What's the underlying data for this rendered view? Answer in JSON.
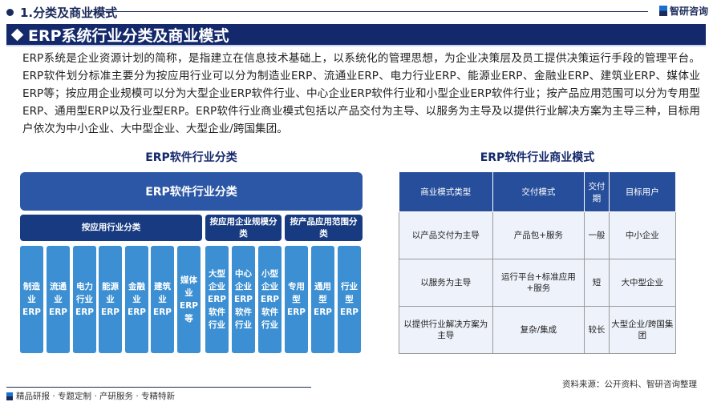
{
  "section": {
    "title": "1.分类及商业模式"
  },
  "brand": {
    "name": "智研咨询"
  },
  "title": "ERP系统行业分类及商业模式",
  "paragraph": "ERP系统是企业资源计划的简称，是指建立在信息技术基础上，以系统化的管理思想，为企业决策层及员工提供决策运行手段的管理平台。ERP软件划分标准主要分为按应用行业可以分为制造业ERP、流通业ERP、电力行业ERP、能源业ERP、金融业ERP、建筑业ERP、媒体业ERP等；按应用企业规模可以分为大型企业ERP软件行业、中心企业ERP软件行业和小型企业ERP软件行业；按产品应用范围可以分为专用型ERP、通用型ERP以及行业型ERP。ERP软件行业商业模式包括以产品交付为主导、以服务为主导及以提供行业解决方案为主导三种，目标用户依次为中小企业、大中型企业、大型企业/跨国集团。",
  "classification": {
    "heading": "ERP软件行业分类",
    "root": "ERP软件行业分类",
    "groups": [
      "按应用行业分类",
      "按应用企业规模分类",
      "按产品应用范围分类"
    ],
    "items": [
      "制造业ERP",
      "流通业ERP",
      "电力行业ERP",
      "能源业ERP",
      "金融业ERP",
      "建筑业ERP",
      "媒体业ERP等",
      "大型企业ERP软件行业",
      "中心企业ERP软件行业",
      "小型企业ERP软件行业",
      "专用型ERP",
      "通用型ERP",
      "行业型ERP"
    ]
  },
  "business": {
    "heading": "ERP软件行业商业模式",
    "headers": [
      "商业模式类型",
      "交付模式",
      "交付期",
      "目标用户"
    ],
    "rows": [
      [
        "以产品交付为主导",
        "产品包+服务",
        "一般",
        "中小企业"
      ],
      [
        "以服务为主导",
        "运行平台+标准应用+服务",
        "短",
        "大中型企业"
      ],
      [
        "以提供行业解决方案为主导",
        "复杂/集成",
        "较长",
        "大型企业/跨国集团"
      ]
    ]
  },
  "footer": {
    "source": "资料来源：公开资料、智研咨询整理",
    "slogan": "精品研报 · 专题定制 · 产研服务 · 专精特新"
  }
}
